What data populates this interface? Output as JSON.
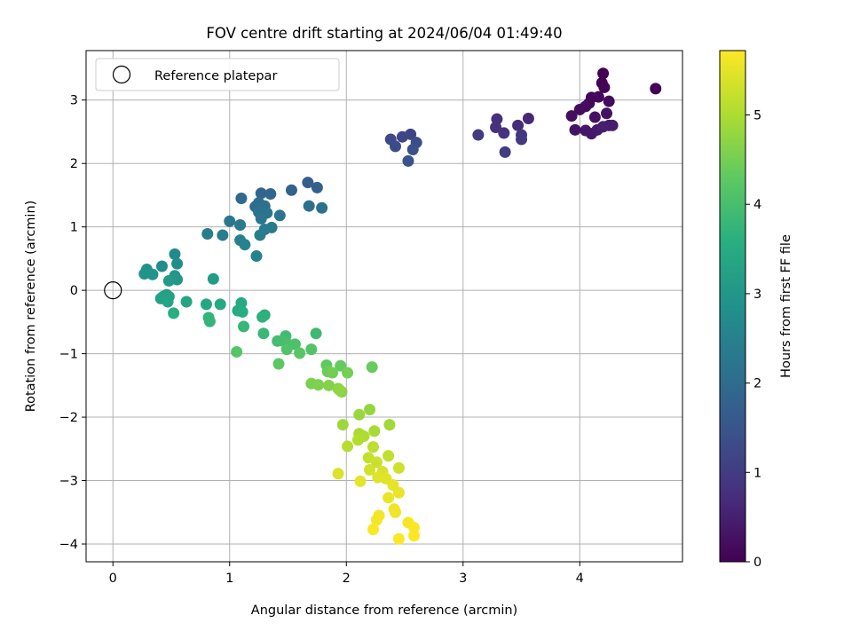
{
  "chart_data": {
    "type": "scatter",
    "title": "FOV centre drift starting at 2024/06/04 01:49:40",
    "xlabel": "Angular distance from reference (arcmin)",
    "ylabel": "Rotation from reference (arcmin)",
    "xlim": [
      -0.23,
      4.88
    ],
    "ylim": [
      -4.28,
      3.78
    ],
    "xticks": [
      0,
      1,
      2,
      3,
      4
    ],
    "yticks": [
      -4,
      -3,
      -2,
      -1,
      0,
      1,
      2,
      3
    ],
    "grid": true,
    "legend": {
      "position": "top-left",
      "entries": [
        "Reference platepar"
      ]
    },
    "reference_point": {
      "x": 0,
      "y": 0,
      "label": "Reference platepar"
    },
    "colorbar": {
      "label": "Hours from first FF file",
      "colormap": "viridis",
      "range": [
        0,
        5.72
      ],
      "ticks": [
        0,
        1,
        2,
        3,
        4,
        5
      ]
    },
    "points": [
      {
        "x": 4.2,
        "y": 3.42,
        "c": 0.02
      },
      {
        "x": 4.19,
        "y": 3.27,
        "c": 0.03
      },
      {
        "x": 4.21,
        "y": 3.2,
        "c": 0.05
      },
      {
        "x": 4.65,
        "y": 3.18,
        "c": 0.04
      },
      {
        "x": 4.1,
        "y": 3.04,
        "c": 0.08
      },
      {
        "x": 4.16,
        "y": 3.05,
        "c": 0.1
      },
      {
        "x": 4.08,
        "y": 2.95,
        "c": 0.12
      },
      {
        "x": 4.25,
        "y": 2.98,
        "c": 0.14
      },
      {
        "x": 4.0,
        "y": 2.85,
        "c": 0.17
      },
      {
        "x": 4.05,
        "y": 2.9,
        "c": 0.19
      },
      {
        "x": 3.93,
        "y": 2.75,
        "c": 0.22
      },
      {
        "x": 4.13,
        "y": 2.73,
        "c": 0.24
      },
      {
        "x": 4.23,
        "y": 2.79,
        "c": 0.27
      },
      {
        "x": 3.96,
        "y": 2.53,
        "c": 0.3
      },
      {
        "x": 4.05,
        "y": 2.52,
        "c": 0.33
      },
      {
        "x": 4.1,
        "y": 2.47,
        "c": 0.36
      },
      {
        "x": 4.15,
        "y": 2.53,
        "c": 0.39
      },
      {
        "x": 4.25,
        "y": 2.6,
        "c": 0.42
      },
      {
        "x": 4.28,
        "y": 2.6,
        "c": 0.46
      },
      {
        "x": 4.2,
        "y": 2.58,
        "c": 0.5
      },
      {
        "x": 3.56,
        "y": 2.71,
        "c": 0.65
      },
      {
        "x": 3.47,
        "y": 2.6,
        "c": 0.7
      },
      {
        "x": 3.29,
        "y": 2.7,
        "c": 0.75
      },
      {
        "x": 3.28,
        "y": 2.57,
        "c": 0.8
      },
      {
        "x": 3.35,
        "y": 2.48,
        "c": 0.84
      },
      {
        "x": 3.5,
        "y": 2.45,
        "c": 0.88
      },
      {
        "x": 3.5,
        "y": 2.38,
        "c": 0.92
      },
      {
        "x": 3.13,
        "y": 2.45,
        "c": 0.96
      },
      {
        "x": 3.36,
        "y": 2.18,
        "c": 1.0
      },
      {
        "x": 2.55,
        "y": 2.46,
        "c": 1.15
      },
      {
        "x": 2.48,
        "y": 2.42,
        "c": 1.2
      },
      {
        "x": 2.38,
        "y": 2.38,
        "c": 1.25
      },
      {
        "x": 2.42,
        "y": 2.27,
        "c": 1.3
      },
      {
        "x": 2.6,
        "y": 2.33,
        "c": 1.35
      },
      {
        "x": 2.57,
        "y": 2.22,
        "c": 1.4
      },
      {
        "x": 2.53,
        "y": 2.04,
        "c": 1.45
      },
      {
        "x": 1.67,
        "y": 1.7,
        "c": 1.7
      },
      {
        "x": 1.75,
        "y": 1.62,
        "c": 1.75
      },
      {
        "x": 1.53,
        "y": 1.58,
        "c": 1.8
      },
      {
        "x": 1.27,
        "y": 1.53,
        "c": 1.85
      },
      {
        "x": 1.35,
        "y": 1.52,
        "c": 1.9
      },
      {
        "x": 1.1,
        "y": 1.45,
        "c": 1.95
      },
      {
        "x": 1.25,
        "y": 1.38,
        "c": 2.0
      },
      {
        "x": 1.22,
        "y": 1.32,
        "c": 2.03
      },
      {
        "x": 1.3,
        "y": 1.33,
        "c": 2.06
      },
      {
        "x": 1.68,
        "y": 1.33,
        "c": 2.09
      },
      {
        "x": 1.79,
        "y": 1.3,
        "c": 2.12
      },
      {
        "x": 1.25,
        "y": 1.23,
        "c": 2.15
      },
      {
        "x": 1.32,
        "y": 1.22,
        "c": 2.18
      },
      {
        "x": 1.43,
        "y": 1.18,
        "c": 2.21
      },
      {
        "x": 1.27,
        "y": 1.13,
        "c": 2.24
      },
      {
        "x": 1.0,
        "y": 1.09,
        "c": 2.27
      },
      {
        "x": 1.09,
        "y": 1.03,
        "c": 2.3
      },
      {
        "x": 1.36,
        "y": 0.99,
        "c": 2.33
      },
      {
        "x": 1.3,
        "y": 0.96,
        "c": 2.36
      },
      {
        "x": 0.81,
        "y": 0.89,
        "c": 2.39
      },
      {
        "x": 0.94,
        "y": 0.87,
        "c": 2.42
      },
      {
        "x": 1.26,
        "y": 0.87,
        "c": 2.45
      },
      {
        "x": 1.09,
        "y": 0.79,
        "c": 2.48
      },
      {
        "x": 1.13,
        "y": 0.72,
        "c": 2.51
      },
      {
        "x": 1.23,
        "y": 0.54,
        "c": 2.54
      },
      {
        "x": 0.53,
        "y": 0.57,
        "c": 2.7
      },
      {
        "x": 0.42,
        "y": 0.38,
        "c": 2.75
      },
      {
        "x": 0.55,
        "y": 0.42,
        "c": 2.8
      },
      {
        "x": 0.29,
        "y": 0.33,
        "c": 2.85
      },
      {
        "x": 0.27,
        "y": 0.26,
        "c": 2.9
      },
      {
        "x": 0.34,
        "y": 0.25,
        "c": 2.94
      },
      {
        "x": 0.53,
        "y": 0.23,
        "c": 2.98
      },
      {
        "x": 0.55,
        "y": 0.17,
        "c": 3.02
      },
      {
        "x": 0.48,
        "y": 0.15,
        "c": 3.06
      },
      {
        "x": 0.86,
        "y": 0.18,
        "c": 3.1
      },
      {
        "x": 0.46,
        "y": -0.07,
        "c": 3.14
      },
      {
        "x": 0.43,
        "y": -0.1,
        "c": 3.18
      },
      {
        "x": 0.48,
        "y": -0.1,
        "c": 3.22
      },
      {
        "x": 0.41,
        "y": -0.13,
        "c": 3.26
      },
      {
        "x": 0.47,
        "y": -0.18,
        "c": 3.3
      },
      {
        "x": 0.63,
        "y": -0.18,
        "c": 3.34
      },
      {
        "x": 0.8,
        "y": -0.22,
        "c": 3.38
      },
      {
        "x": 0.92,
        "y": -0.22,
        "c": 3.42
      },
      {
        "x": 1.1,
        "y": -0.2,
        "c": 3.46
      },
      {
        "x": 1.07,
        "y": -0.32,
        "c": 3.5
      },
      {
        "x": 1.11,
        "y": -0.34,
        "c": 3.54
      },
      {
        "x": 0.52,
        "y": -0.36,
        "c": 3.58
      },
      {
        "x": 1.3,
        "y": -0.39,
        "c": 3.62
      },
      {
        "x": 1.28,
        "y": -0.42,
        "c": 3.66
      },
      {
        "x": 0.82,
        "y": -0.43,
        "c": 3.7
      },
      {
        "x": 0.83,
        "y": -0.49,
        "c": 3.74
      },
      {
        "x": 1.12,
        "y": -0.57,
        "c": 3.78
      },
      {
        "x": 1.29,
        "y": -0.68,
        "c": 3.82
      },
      {
        "x": 1.74,
        "y": -0.68,
        "c": 3.86
      },
      {
        "x": 1.48,
        "y": -0.72,
        "c": 3.9
      },
      {
        "x": 1.41,
        "y": -0.8,
        "c": 3.94
      },
      {
        "x": 1.46,
        "y": -0.8,
        "c": 3.98
      },
      {
        "x": 1.5,
        "y": -0.85,
        "c": 4.02
      },
      {
        "x": 1.56,
        "y": -0.85,
        "c": 4.06
      },
      {
        "x": 1.49,
        "y": -0.93,
        "c": 4.1
      },
      {
        "x": 1.7,
        "y": -0.93,
        "c": 4.14
      },
      {
        "x": 1.06,
        "y": -0.97,
        "c": 4.18
      },
      {
        "x": 1.6,
        "y": -0.99,
        "c": 4.22
      },
      {
        "x": 1.42,
        "y": -1.16,
        "c": 4.26
      },
      {
        "x": 1.83,
        "y": -1.18,
        "c": 4.3
      },
      {
        "x": 1.95,
        "y": -1.19,
        "c": 4.34
      },
      {
        "x": 2.22,
        "y": -1.21,
        "c": 4.38
      },
      {
        "x": 1.84,
        "y": -1.28,
        "c": 4.42
      },
      {
        "x": 1.88,
        "y": -1.3,
        "c": 4.46
      },
      {
        "x": 2.01,
        "y": -1.3,
        "c": 4.5
      },
      {
        "x": 1.7,
        "y": -1.47,
        "c": 4.54
      },
      {
        "x": 1.76,
        "y": -1.49,
        "c": 4.58
      },
      {
        "x": 1.85,
        "y": -1.5,
        "c": 4.62
      },
      {
        "x": 1.93,
        "y": -1.55,
        "c": 4.66
      },
      {
        "x": 1.96,
        "y": -1.6,
        "c": 4.7
      },
      {
        "x": 1.94,
        "y": -1.57,
        "c": 4.74
      },
      {
        "x": 2.2,
        "y": -1.88,
        "c": 4.78
      },
      {
        "x": 2.11,
        "y": -1.96,
        "c": 4.82
      },
      {
        "x": 1.97,
        "y": -2.12,
        "c": 4.86
      },
      {
        "x": 2.37,
        "y": -2.12,
        "c": 4.9
      },
      {
        "x": 2.24,
        "y": -2.22,
        "c": 4.94
      },
      {
        "x": 2.11,
        "y": -2.26,
        "c": 4.98
      },
      {
        "x": 2.15,
        "y": -2.3,
        "c": 5.02
      },
      {
        "x": 2.1,
        "y": -2.36,
        "c": 5.06
      },
      {
        "x": 2.01,
        "y": -2.46,
        "c": 5.1
      },
      {
        "x": 2.23,
        "y": -2.47,
        "c": 5.14
      },
      {
        "x": 2.36,
        "y": -2.61,
        "c": 5.18
      },
      {
        "x": 2.19,
        "y": -2.64,
        "c": 5.22
      },
      {
        "x": 2.26,
        "y": -2.71,
        "c": 5.26
      },
      {
        "x": 2.45,
        "y": -2.8,
        "c": 5.3
      },
      {
        "x": 2.2,
        "y": -2.83,
        "c": 5.34
      },
      {
        "x": 2.31,
        "y": -2.86,
        "c": 5.38
      },
      {
        "x": 1.93,
        "y": -2.89,
        "c": 5.42
      },
      {
        "x": 2.27,
        "y": -2.95,
        "c": 5.45
      },
      {
        "x": 2.34,
        "y": -2.97,
        "c": 5.48
      },
      {
        "x": 2.12,
        "y": -3.01,
        "c": 5.5
      },
      {
        "x": 2.4,
        "y": -3.07,
        "c": 5.52
      },
      {
        "x": 2.45,
        "y": -3.19,
        "c": 5.54
      },
      {
        "x": 2.36,
        "y": -3.27,
        "c": 5.56
      },
      {
        "x": 2.41,
        "y": -3.45,
        "c": 5.58
      },
      {
        "x": 2.42,
        "y": -3.5,
        "c": 5.6
      },
      {
        "x": 2.28,
        "y": -3.55,
        "c": 5.62
      },
      {
        "x": 2.26,
        "y": -3.62,
        "c": 5.64
      },
      {
        "x": 2.53,
        "y": -3.66,
        "c": 5.66
      },
      {
        "x": 2.58,
        "y": -3.74,
        "c": 5.68
      },
      {
        "x": 2.23,
        "y": -3.77,
        "c": 5.69
      },
      {
        "x": 2.58,
        "y": -3.87,
        "c": 5.7
      },
      {
        "x": 2.45,
        "y": -3.92,
        "c": 5.71
      }
    ]
  }
}
